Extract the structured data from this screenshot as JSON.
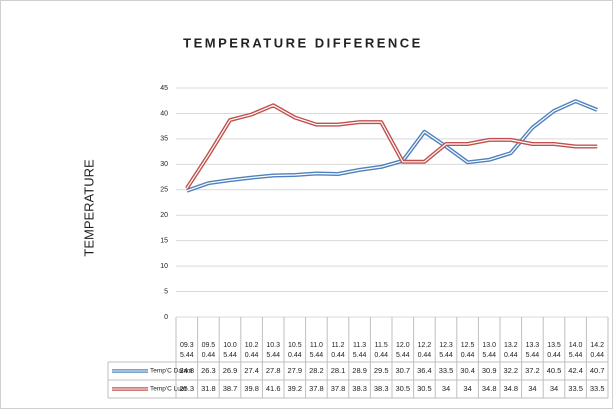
{
  "chart_data": {
    "type": "line",
    "title": "TEMPERATURE DIFFERENCE",
    "ylabel": "TEMPERATURE",
    "categories": [
      [
        "09.3",
        "5.44"
      ],
      [
        "09.5",
        "0.44"
      ],
      [
        "10.0",
        "5.44"
      ],
      [
        "10.2",
        "0.44"
      ],
      [
        "10.3",
        "5.44"
      ],
      [
        "10.5",
        "0.44"
      ],
      [
        "11.0",
        "5.44"
      ],
      [
        "11.2",
        "0.44"
      ],
      [
        "11.3",
        "5.44"
      ],
      [
        "11.5",
        "0.44"
      ],
      [
        "12.0",
        "5.44"
      ],
      [
        "12.2",
        "0.44"
      ],
      [
        "12.3",
        "5.44"
      ],
      [
        "12.5",
        "0.44"
      ],
      [
        "13.0",
        "5.44"
      ],
      [
        "13.2",
        "0.44"
      ],
      [
        "13.3",
        "5.44"
      ],
      [
        "13.5",
        "0.44"
      ],
      [
        "14.0",
        "5.44"
      ],
      [
        "14.2",
        "0.44"
      ]
    ],
    "series": [
      {
        "name": "Temp'C Dalam",
        "color": "#4f81bd",
        "values": [
          24.8,
          26.3,
          26.9,
          27.4,
          27.8,
          27.9,
          28.2,
          28.1,
          28.9,
          29.5,
          30.7,
          36.4,
          33.5,
          30.4,
          30.9,
          32.2,
          37.2,
          40.5,
          42.4,
          40.7
        ]
      },
      {
        "name": "Temp'C Luar",
        "color": "#c0504d",
        "values": [
          25.3,
          31.8,
          38.7,
          39.8,
          41.6,
          39.2,
          37.8,
          37.8,
          38.3,
          38.3,
          30.5,
          30.5,
          34,
          34,
          34.8,
          34.8,
          34,
          34,
          33.5,
          33.5
        ]
      }
    ],
    "ylim": [
      0,
      45
    ],
    "yticks": [
      0,
      5,
      10,
      15,
      20,
      25,
      30,
      35,
      40,
      45
    ],
    "grid": true
  }
}
